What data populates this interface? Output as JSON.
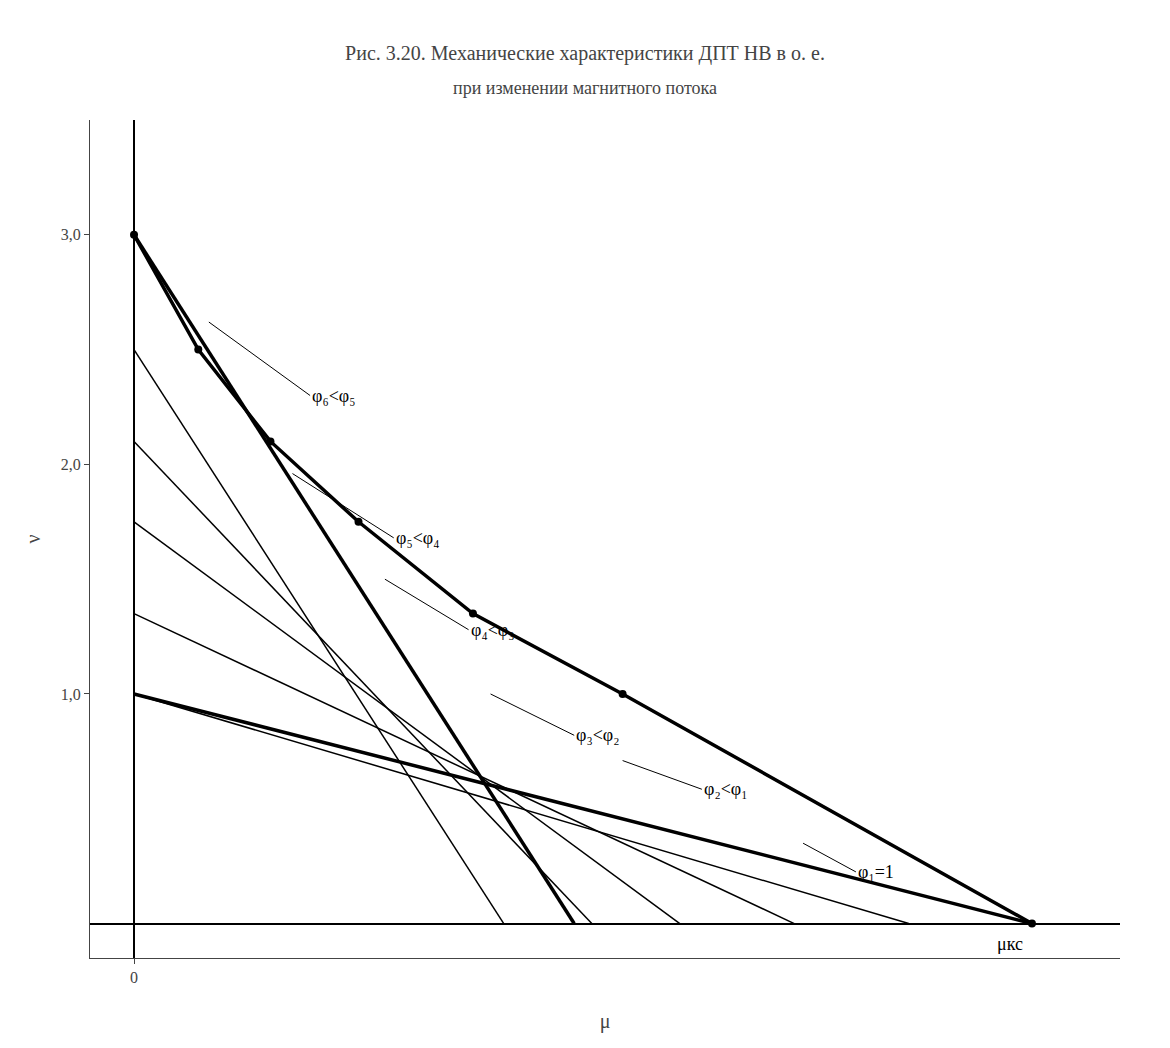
{
  "chart_data": {
    "type": "line",
    "title": "Рис. 3.20. Механические характеристики ДПТ НВ в о. е.",
    "subtitle": "при изменении магнитного потока",
    "x_label": "μ",
    "y_label": "ν",
    "xlim": [
      -0.05,
      1.12
    ],
    "ylim": [
      -0.15,
      3.5
    ],
    "xticks": [
      0
    ],
    "yticks": [
      {
        "value": 1.0,
        "label": "1,0"
      },
      {
        "value": 2.0,
        "label": "2,0"
      },
      {
        "value": 3.0,
        "label": "3,0"
      }
    ],
    "grid": false,
    "series": [
      {
        "color": "#000000",
        "line_style": "thin",
        "x": [
          0.0,
          0.42
        ],
        "values": [
          2.5,
          0.0
        ]
      },
      {
        "color": "#000000",
        "line_style": "thin",
        "x": [
          0.0,
          0.52
        ],
        "values": [
          2.1,
          0.0
        ]
      },
      {
        "color": "#000000",
        "line_style": "thin",
        "x": [
          0.0,
          0.62
        ],
        "values": [
          1.75,
          0.0
        ]
      },
      {
        "color": "#000000",
        "line_style": "thin",
        "x": [
          0.0,
          0.75
        ],
        "values": [
          1.35,
          0.0
        ]
      },
      {
        "color": "#000000",
        "line_style": "thin",
        "x": [
          0.0,
          0.88
        ],
        "values": [
          1.0,
          0.0
        ]
      },
      {
        "color": "#000000",
        "line_style": "thick",
        "x": [
          0.0,
          0.5
        ],
        "values": [
          3.0,
          0.0
        ]
      },
      {
        "color": "#000000",
        "line_style": "thick",
        "x": [
          0.0,
          1.02
        ],
        "values": [
          1.0,
          0.0
        ]
      },
      {
        "color": "#000000",
        "line_style": "thick",
        "marker": "circle",
        "x": [
          0.0,
          0.073,
          0.155,
          0.255,
          0.385,
          0.555,
          1.02
        ],
        "values": [
          3.0,
          2.5,
          2.1,
          1.75,
          1.35,
          1.0,
          0.0
        ]
      }
    ],
    "annotations": [
      {
        "text": "φ₆<φ₅",
        "x": 0.085,
        "y": 2.62,
        "text_x": 0.2,
        "text_y": 2.3
      },
      {
        "text": "φ₅<φ₄",
        "x": 0.18,
        "y": 1.96,
        "text_x": 0.295,
        "text_y": 1.68
      },
      {
        "text": "φ₄<φ₃",
        "x": 0.285,
        "y": 1.5,
        "text_x": 0.38,
        "text_y": 1.28
      },
      {
        "text": "φ₃<φ₂",
        "x": 0.405,
        "y": 1.0,
        "text_x": 0.5,
        "text_y": 0.82
      },
      {
        "text": "φ₂<φ₁",
        "x": 0.555,
        "y": 0.71,
        "text_x": 0.645,
        "text_y": 0.585
      },
      {
        "text": "φ₁=1",
        "x": 0.76,
        "y": 0.35,
        "text_x": 0.82,
        "text_y": 0.225
      },
      {
        "text": "μкс",
        "x": 0.995,
        "y": -0.09
      }
    ]
  }
}
